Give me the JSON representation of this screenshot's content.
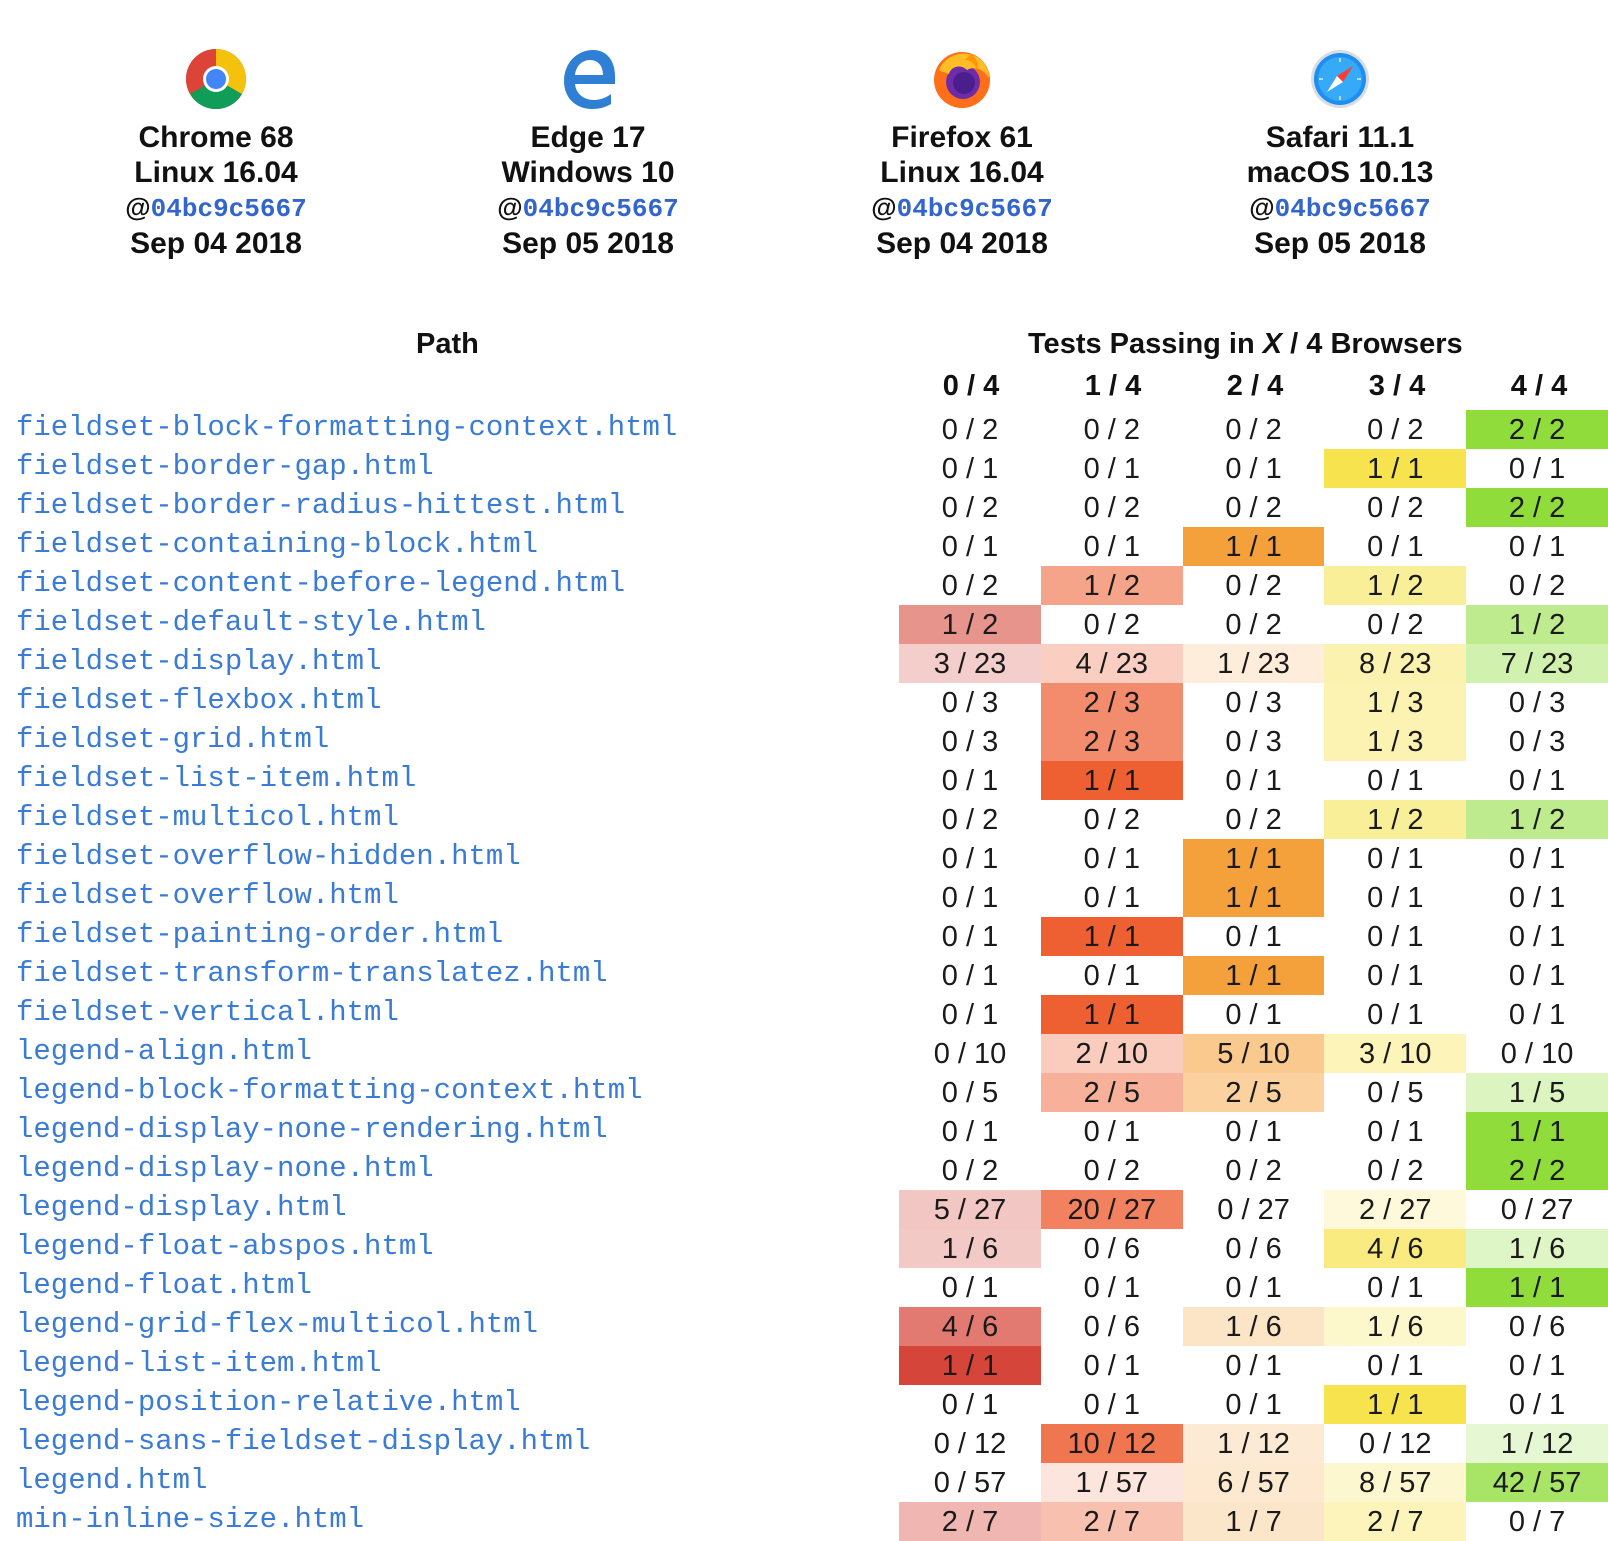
{
  "browsers": [
    {
      "name": "Chrome 68",
      "os": "Linux 16.04",
      "rev_prefix": "@",
      "rev": "04bc9c5667",
      "date": "Sep 04 2018",
      "icon": "chrome-icon"
    },
    {
      "name": "Edge 17",
      "os": "Windows 10",
      "rev_prefix": "@",
      "rev": "04bc9c5667",
      "date": "Sep 05 2018",
      "icon": "edge-icon"
    },
    {
      "name": "Firefox 61",
      "os": "Linux 16.04",
      "rev_prefix": "@",
      "rev": "04bc9c5667",
      "date": "Sep 04 2018",
      "icon": "firefox-icon"
    },
    {
      "name": "Safari 11.1",
      "os": "macOS 10.13",
      "rev_prefix": "@",
      "rev": "04bc9c5667",
      "date": "Sep 05 2018",
      "icon": "safari-icon"
    }
  ],
  "table": {
    "path_header": "Path",
    "tests_header_pre": "Tests Passing in ",
    "tests_header_x": "X",
    "tests_header_post": " / 4 Browsers",
    "columns": [
      "0 / 4",
      "1 / 4",
      "2 / 4",
      "3 / 4",
      "4 / 4"
    ],
    "column_colors": [
      "#d6453a",
      "#ee5f32",
      "#f4a13b",
      "#f7e34e",
      "#8fdc3a"
    ],
    "rows": [
      {
        "path": "fieldset-block-formatting-context.html",
        "cells": [
          "0 / 2",
          "0 / 2",
          "0 / 2",
          "0 / 2",
          "2 / 2"
        ]
      },
      {
        "path": "fieldset-border-gap.html",
        "cells": [
          "0 / 1",
          "0 / 1",
          "0 / 1",
          "1 / 1",
          "0 / 1"
        ]
      },
      {
        "path": "fieldset-border-radius-hittest.html",
        "cells": [
          "0 / 2",
          "0 / 2",
          "0 / 2",
          "0 / 2",
          "2 / 2"
        ]
      },
      {
        "path": "fieldset-containing-block.html",
        "cells": [
          "0 / 1",
          "0 / 1",
          "1 / 1",
          "0 / 1",
          "0 / 1"
        ]
      },
      {
        "path": "fieldset-content-before-legend.html",
        "cells": [
          "0 / 2",
          "1 / 2",
          "0 / 2",
          "1 / 2",
          "0 / 2"
        ]
      },
      {
        "path": "fieldset-default-style.html",
        "cells": [
          "1 / 2",
          "0 / 2",
          "0 / 2",
          "0 / 2",
          "1 / 2"
        ]
      },
      {
        "path": "fieldset-display.html",
        "cells": [
          "3 / 23",
          "4 / 23",
          "1 / 23",
          "8 / 23",
          "7 / 23"
        ]
      },
      {
        "path": "fieldset-flexbox.html",
        "cells": [
          "0 / 3",
          "2 / 3",
          "0 / 3",
          "1 / 3",
          "0 / 3"
        ]
      },
      {
        "path": "fieldset-grid.html",
        "cells": [
          "0 / 3",
          "2 / 3",
          "0 / 3",
          "1 / 3",
          "0 / 3"
        ]
      },
      {
        "path": "fieldset-list-item.html",
        "cells": [
          "0 / 1",
          "1 / 1",
          "0 / 1",
          "0 / 1",
          "0 / 1"
        ]
      },
      {
        "path": "fieldset-multicol.html",
        "cells": [
          "0 / 2",
          "0 / 2",
          "0 / 2",
          "1 / 2",
          "1 / 2"
        ]
      },
      {
        "path": "fieldset-overflow-hidden.html",
        "cells": [
          "0 / 1",
          "0 / 1",
          "1 / 1",
          "0 / 1",
          "0 / 1"
        ]
      },
      {
        "path": "fieldset-overflow.html",
        "cells": [
          "0 / 1",
          "0 / 1",
          "1 / 1",
          "0 / 1",
          "0 / 1"
        ]
      },
      {
        "path": "fieldset-painting-order.html",
        "cells": [
          "0 / 1",
          "1 / 1",
          "0 / 1",
          "0 / 1",
          "0 / 1"
        ]
      },
      {
        "path": "fieldset-transform-translatez.html",
        "cells": [
          "0 / 1",
          "0 / 1",
          "1 / 1",
          "0 / 1",
          "0 / 1"
        ]
      },
      {
        "path": "fieldset-vertical.html",
        "cells": [
          "0 / 1",
          "1 / 1",
          "0 / 1",
          "0 / 1",
          "0 / 1"
        ]
      },
      {
        "path": "legend-align.html",
        "cells": [
          "0 / 10",
          "2 / 10",
          "5 / 10",
          "3 / 10",
          "0 / 10"
        ]
      },
      {
        "path": "legend-block-formatting-context.html",
        "cells": [
          "0 / 5",
          "2 / 5",
          "2 / 5",
          "0 / 5",
          "1 / 5"
        ]
      },
      {
        "path": "legend-display-none-rendering.html",
        "cells": [
          "0 / 1",
          "0 / 1",
          "0 / 1",
          "0 / 1",
          "1 / 1"
        ]
      },
      {
        "path": "legend-display-none.html",
        "cells": [
          "0 / 2",
          "0 / 2",
          "0 / 2",
          "0 / 2",
          "2 / 2"
        ]
      },
      {
        "path": "legend-display.html",
        "cells": [
          "5 / 27",
          "20 / 27",
          "0 / 27",
          "2 / 27",
          "0 / 27"
        ]
      },
      {
        "path": "legend-float-abspos.html",
        "cells": [
          "1 / 6",
          "0 / 6",
          "0 / 6",
          "4 / 6",
          "1 / 6"
        ]
      },
      {
        "path": "legend-float.html",
        "cells": [
          "0 / 1",
          "0 / 1",
          "0 / 1",
          "0 / 1",
          "1 / 1"
        ]
      },
      {
        "path": "legend-grid-flex-multicol.html",
        "cells": [
          "4 / 6",
          "0 / 6",
          "1 / 6",
          "1 / 6",
          "0 / 6"
        ]
      },
      {
        "path": "legend-list-item.html",
        "cells": [
          "1 / 1",
          "0 / 1",
          "0 / 1",
          "0 / 1",
          "0 / 1"
        ]
      },
      {
        "path": "legend-position-relative.html",
        "cells": [
          "0 / 1",
          "0 / 1",
          "0 / 1",
          "1 / 1",
          "0 / 1"
        ]
      },
      {
        "path": "legend-sans-fieldset-display.html",
        "cells": [
          "0 / 12",
          "10 / 12",
          "1 / 12",
          "0 / 12",
          "1 / 12"
        ]
      },
      {
        "path": "legend.html",
        "cells": [
          "0 / 57",
          "1 / 57",
          "6 / 57",
          "8 / 57",
          "42 / 57"
        ]
      },
      {
        "path": "min-inline-size.html",
        "cells": [
          "2 / 7",
          "2 / 7",
          "1 / 7",
          "2 / 7",
          "0 / 7"
        ]
      }
    ]
  }
}
